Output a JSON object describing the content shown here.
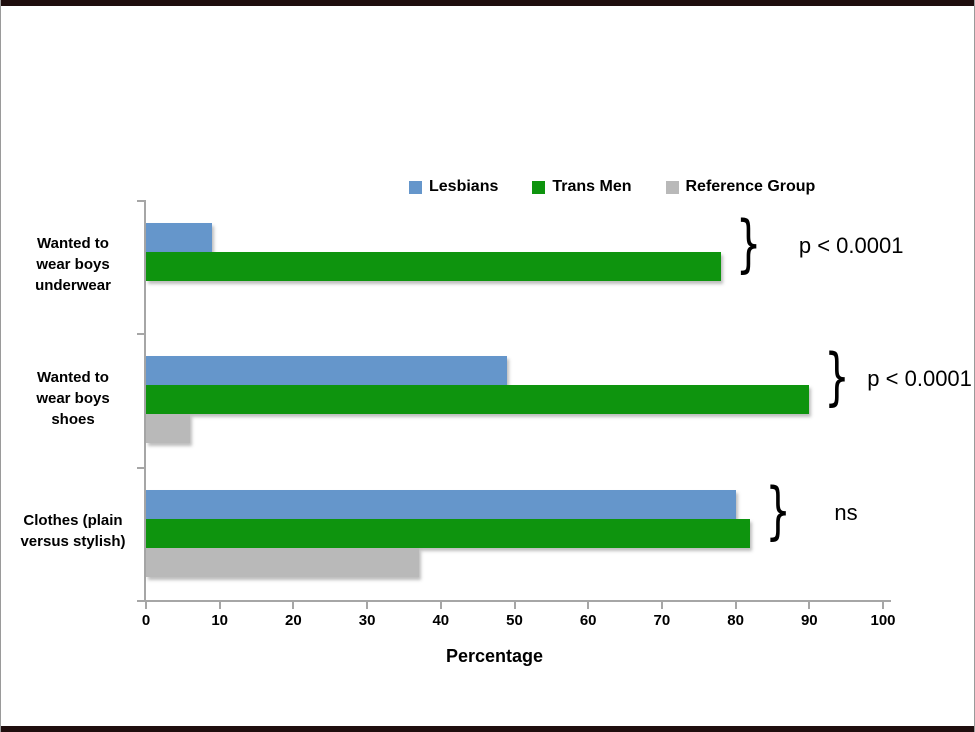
{
  "slide": {
    "background": "#ffffff",
    "edge_bar_color": "#1f0e0e"
  },
  "chart_data": {
    "type": "bar",
    "orientation": "horizontal",
    "title": "",
    "xlabel": "Percentage",
    "ylabel": "",
    "xlim": [
      0,
      100
    ],
    "xticks": [
      0,
      10,
      20,
      30,
      40,
      50,
      60,
      70,
      80,
      90,
      100
    ],
    "grid": false,
    "legend_position": "top",
    "categories": [
      "Wanted to wear boys underwear",
      "Wanted to wear boys shoes",
      "Clothes (plain versus stylish)"
    ],
    "category_label_lines": [
      [
        "Wanted to",
        "wear boys",
        "underwear"
      ],
      [
        "Wanted to",
        "wear boys",
        "shoes"
      ],
      [
        "Clothes (plain",
        "versus stylish)"
      ]
    ],
    "series": [
      {
        "name": "Lesbians",
        "color": "#6596cb",
        "values": [
          9,
          49,
          80
        ]
      },
      {
        "name": "Trans Men",
        "color": "#0e940e",
        "values": [
          78,
          90,
          82
        ]
      },
      {
        "name": "Reference Group",
        "color": "#b9b9b9",
        "values": [
          0,
          6,
          37
        ]
      }
    ],
    "annotations": [
      {
        "category_index": 0,
        "brace": "}",
        "text": "p < 0.0001"
      },
      {
        "category_index": 1,
        "brace": "}",
        "text": "p < 0.0001"
      },
      {
        "category_index": 2,
        "brace": "}",
        "text": "ns"
      }
    ],
    "axis_color": "#a6a6a6"
  }
}
